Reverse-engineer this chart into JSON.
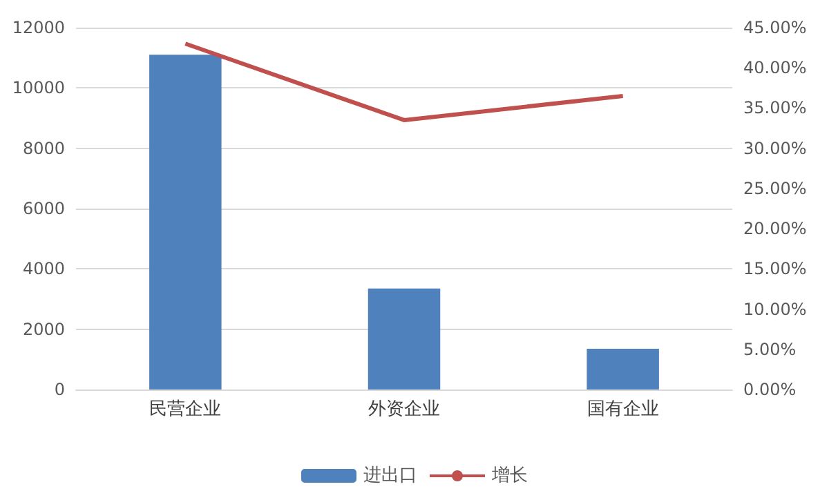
{
  "chart_data": {
    "type": "bar",
    "categories": [
      "民营企业",
      "外资企业",
      "国有企业"
    ],
    "series": [
      {
        "name": "进出口",
        "color": "#4f81bd",
        "values": [
          11100,
          3350,
          1350
        ]
      },
      {
        "name": "增长",
        "type": "line",
        "axis": "y2",
        "color": "#c0504d",
        "values": [
          43,
          33.5,
          36.5
        ],
        "marker": "none"
      }
    ],
    "ylim": [
      0,
      12000
    ],
    "yticks": [
      0,
      2000,
      4000,
      6000,
      8000,
      10000,
      12000
    ],
    "y2lim": [
      0,
      45
    ],
    "y2ticks": [
      {
        "value": 0,
        "label": "0.00%"
      },
      {
        "value": 5,
        "label": "5.00%"
      },
      {
        "value": 10,
        "label": "10.00%"
      },
      {
        "value": 15,
        "label": "15.00%"
      },
      {
        "value": 20,
        "label": "20.00%"
      },
      {
        "value": 25,
        "label": "25.00%"
      },
      {
        "value": 30,
        "label": "30.00%"
      },
      {
        "value": 35,
        "label": "35.00%"
      },
      {
        "value": 40,
        "label": "40.00%"
      },
      {
        "value": 45,
        "label": "45.00%"
      }
    ],
    "grid": "y",
    "legend": "bottom"
  }
}
